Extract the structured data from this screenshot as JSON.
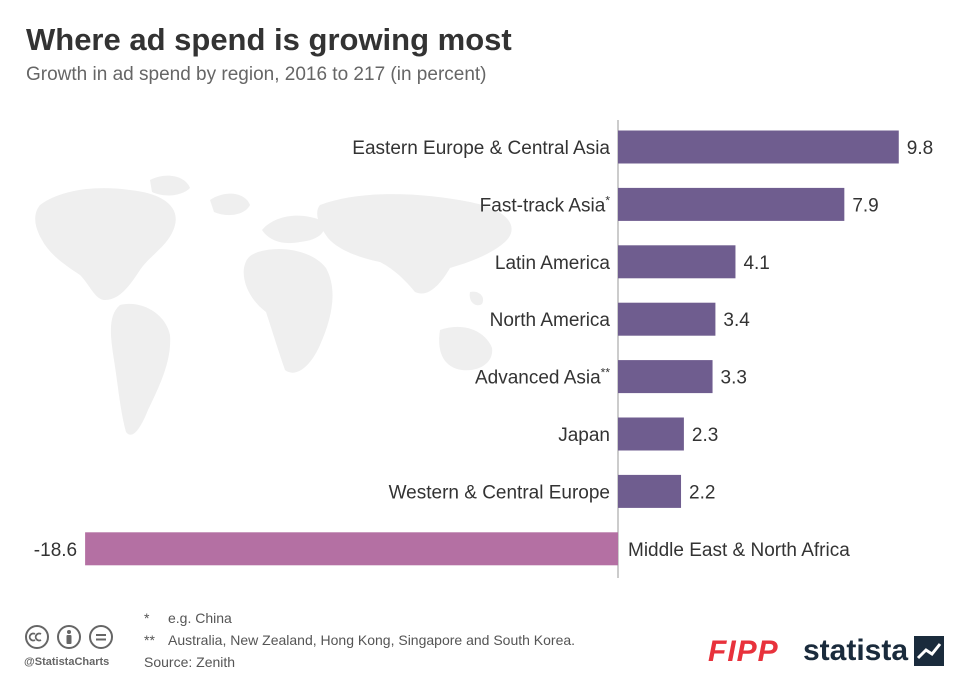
{
  "header": {
    "title": "Where ad spend is growing most",
    "subtitle": "Growth in ad spend by region, 2016 to 217 (in percent)"
  },
  "chart_data": {
    "type": "bar",
    "orientation": "horizontal",
    "title": "Where ad spend is growing most",
    "subtitle": "Growth in ad spend by region, 2016 to 217 (in percent)",
    "xlabel": "",
    "ylabel": "",
    "xlim": [
      -18.6,
      9.8
    ],
    "grid": false,
    "categories": [
      {
        "name": "Eastern Europe & Central Asia",
        "sup": ""
      },
      {
        "name": "Fast-track Asia",
        "sup": "*"
      },
      {
        "name": "Latin America",
        "sup": ""
      },
      {
        "name": "North America",
        "sup": ""
      },
      {
        "name": "Advanced Asia",
        "sup": "**"
      },
      {
        "name": "Japan",
        "sup": ""
      },
      {
        "name": "Western & Central Europe",
        "sup": ""
      },
      {
        "name": "Middle East & North Africa",
        "sup": ""
      }
    ],
    "values": [
      9.8,
      7.9,
      4.1,
      3.4,
      3.3,
      2.3,
      2.2,
      -18.6
    ],
    "value_labels": [
      "9.8",
      "7.9",
      "4.1",
      "3.4",
      "3.3",
      "2.3",
      "2.2",
      "-18.6"
    ],
    "colors": {
      "positive": "#6f5d8f",
      "negative": "#b470a3",
      "axis": "#bbbbbb",
      "label": "#333333"
    }
  },
  "footer": {
    "note1_mark": "*",
    "note1_text": "e.g. China",
    "note2_mark": "**",
    "note2_text": "Australia, New Zealand, Hong Kong, Singapore and South Korea.",
    "source": "Source: Zenith",
    "handle": "@StatistaCharts",
    "fipp_logo": "FIPP",
    "statista_logo": "statista",
    "cc_icons": [
      "cc-icon",
      "attribution-icon",
      "no-derivatives-icon"
    ]
  }
}
